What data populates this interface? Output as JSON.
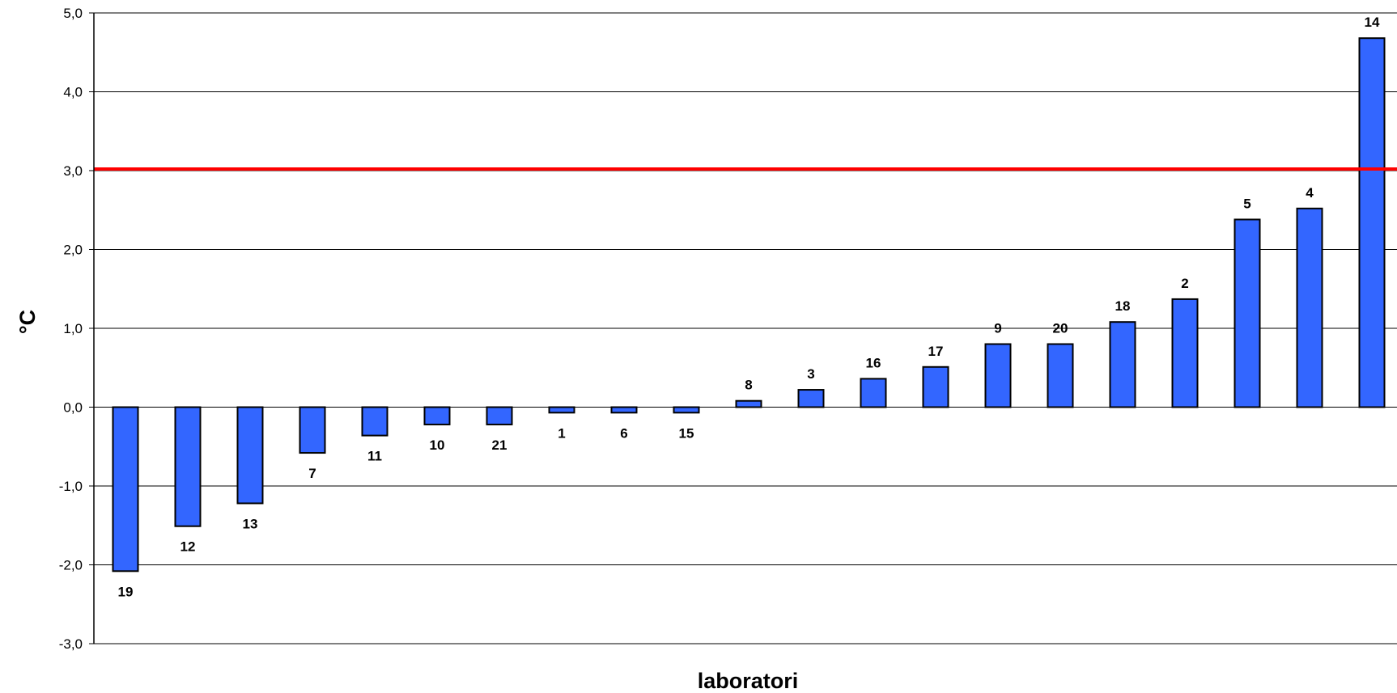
{
  "chart_data": {
    "type": "bar",
    "categories": [
      "19",
      "12",
      "13",
      "7",
      "11",
      "10",
      "21",
      "1",
      "6",
      "15",
      "8",
      "3",
      "16",
      "17",
      "9",
      "20",
      "18",
      "2",
      "5",
      "4",
      "14"
    ],
    "values": [
      -2.08,
      -1.51,
      -1.22,
      -0.58,
      -0.36,
      -0.22,
      -0.22,
      -0.07,
      -0.07,
      -0.07,
      0.08,
      0.22,
      0.36,
      0.51,
      0.8,
      0.8,
      1.08,
      1.37,
      2.38,
      2.52,
      4.68
    ],
    "xlabel": "laboratori",
    "ylabel": "°C",
    "ylim": [
      -3.0,
      5.0
    ],
    "yticks": [
      "-3,0",
      "-2,0",
      "-1,0",
      "0,0",
      "1,0",
      "2,0",
      "3,0",
      "4,0",
      "5,0"
    ],
    "reference_line": {
      "value": 3.02,
      "color": "#ff0000"
    },
    "bar_color": "#3366ff",
    "grid": true
  }
}
